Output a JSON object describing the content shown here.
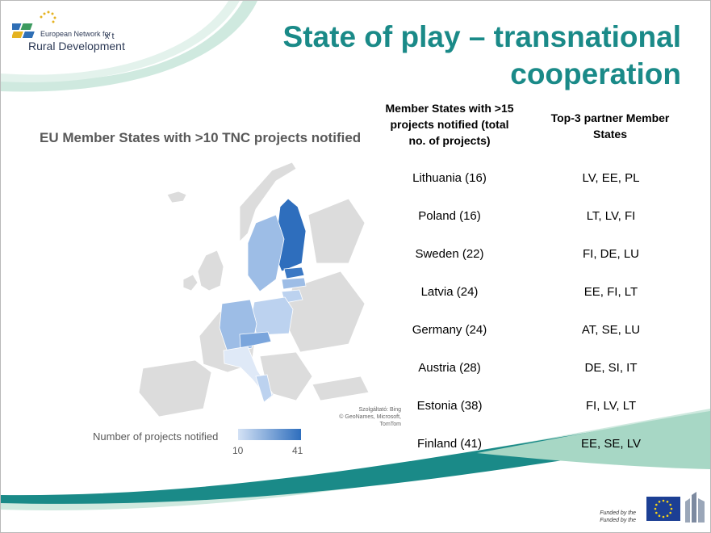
{
  "logo": {
    "line1": "European Network for",
    "line2": "Rural Development",
    "extra": "x t"
  },
  "title": "State of play – transnational cooperation",
  "map": {
    "title": "EU Member States with >10 TNC projects notified",
    "attribution_line1": "Szolgáltató: Bing",
    "attribution_line2": "© GeoNames, Microsoft, TomTom",
    "legend_label": "Number of projects notified",
    "legend_min": "10",
    "legend_max": "41",
    "color_min": "#d4e2f5",
    "color_max": "#2e6ebd"
  },
  "table": {
    "header_left": "Member States with >15 projects notified (total no. of projects)",
    "header_right": "Top-3 partner Member States",
    "rows": [
      {
        "member_state": "Lithuania (16)",
        "partners": "LV, EE, PL"
      },
      {
        "member_state": "Poland (16)",
        "partners": "LT, LV, FI"
      },
      {
        "member_state": "Sweden (22)",
        "partners": "FI, DE, LU"
      },
      {
        "member_state": "Latvia (24)",
        "partners": "EE, FI, LT"
      },
      {
        "member_state": "Germany (24)",
        "partners": "AT, SE, LU"
      },
      {
        "member_state": "Austria (28)",
        "partners": "DE, SI, IT"
      },
      {
        "member_state": "Estonia (38)",
        "partners": "FI, LV, LT"
      },
      {
        "member_state": "Finland (41)",
        "partners": "EE, SE, LV"
      }
    ]
  },
  "footer": {
    "funded_line1": "Funded by the",
    "funded_line2": "Funded by the"
  },
  "colors": {
    "title": "#1a8a88",
    "swoosh_dark": "#1a8a88",
    "swoosh_light": "#a7d7c5"
  }
}
